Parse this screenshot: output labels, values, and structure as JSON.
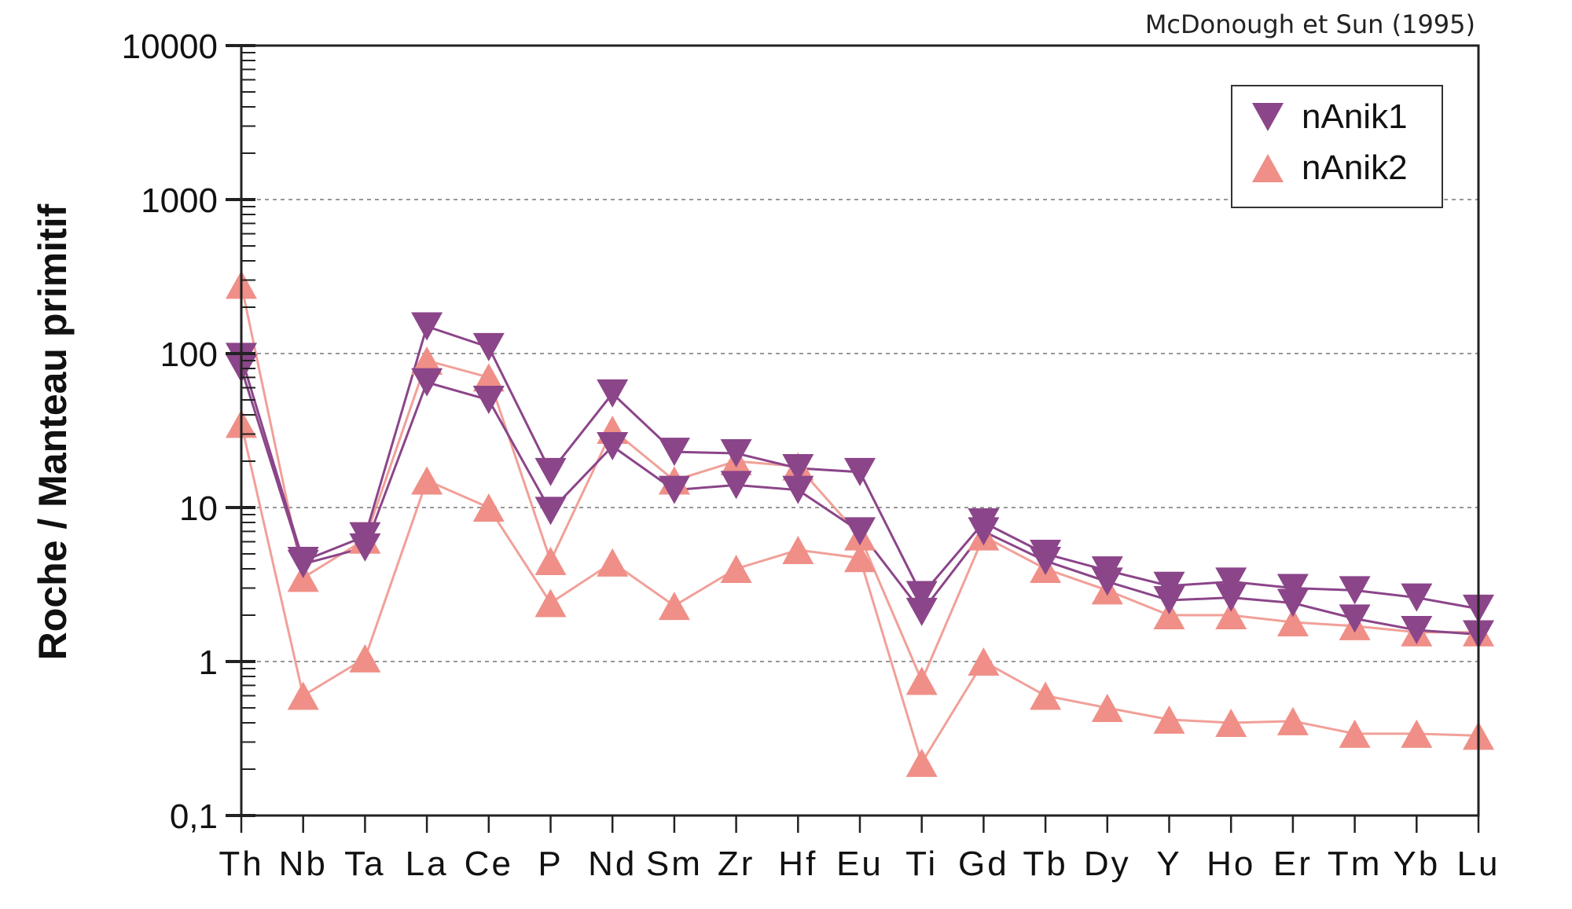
{
  "chart_data": {
    "type": "line",
    "title": "",
    "reference_note": "McDonough et Sun (1995)",
    "xlabel": "",
    "ylabel": "Roche / Manteau primitif",
    "yscale": "log",
    "ylim": [
      0.1,
      10000
    ],
    "y_ticks": [
      {
        "value": 10000,
        "label": "10000"
      },
      {
        "value": 1000,
        "label": "1000"
      },
      {
        "value": 100,
        "label": "100"
      },
      {
        "value": 10,
        "label": "10"
      },
      {
        "value": 1,
        "label": "1"
      },
      {
        "value": 0.1,
        "label": "0,1"
      }
    ],
    "grid": "dashed horizontal at decades 1, 10, 100, 1000",
    "legend_position": "top-right",
    "categories": [
      "Th",
      "Nb",
      "Ta",
      "La",
      "Ce",
      "P",
      "Nd",
      "Sm",
      "Zr",
      "Hf",
      "Eu",
      "Ti",
      "Gd",
      "Tb",
      "Dy",
      "Y",
      "Ho",
      "Er",
      "Tm",
      "Yb",
      "Lu"
    ],
    "series": [
      {
        "name": "nAnik1",
        "group": "nAnik1",
        "marker": "triangle-down",
        "color": "#8b4589",
        "values": [
          95,
          4.5,
          6.5,
          150,
          110,
          17,
          55,
          23,
          22.5,
          18,
          17,
          2.7,
          8,
          5,
          3.9,
          3.1,
          3.3,
          3.0,
          2.9,
          2.6,
          2.2
        ]
      },
      {
        "name": "nAnik1",
        "group": "nAnik1",
        "marker": "triangle-down",
        "color": "#8b4589",
        "values": [
          80,
          4.3,
          5.5,
          65,
          50,
          9.5,
          25,
          13,
          14,
          13,
          7,
          2.1,
          7,
          4.5,
          3.3,
          2.5,
          2.6,
          2.4,
          1.9,
          1.6,
          1.5
        ]
      },
      {
        "name": "nAnik2",
        "group": "nAnik2",
        "marker": "triangle-up",
        "color": "#ef8f87",
        "values": [
          280,
          3.5,
          6.2,
          90,
          70,
          4.5,
          32,
          15,
          20,
          18.5,
          6.5,
          0.75,
          6.5,
          4,
          2.9,
          2.0,
          2.0,
          1.8,
          1.7,
          1.55,
          1.55
        ]
      },
      {
        "name": "nAnik2",
        "group": "nAnik2",
        "marker": "triangle-up",
        "color": "#ef8f87",
        "values": [
          35,
          0.6,
          1.05,
          15,
          10,
          2.4,
          4.4,
          2.3,
          4,
          5.3,
          4.7,
          0.22,
          1.0,
          0.6,
          0.5,
          0.42,
          0.4,
          0.41,
          0.34,
          0.34,
          0.33
        ]
      }
    ],
    "legend": [
      {
        "label": "nAnik1",
        "marker": "triangle-down",
        "color": "#8b4589"
      },
      {
        "label": "nAnik2",
        "marker": "triangle-up",
        "color": "#ef8f87"
      }
    ]
  }
}
